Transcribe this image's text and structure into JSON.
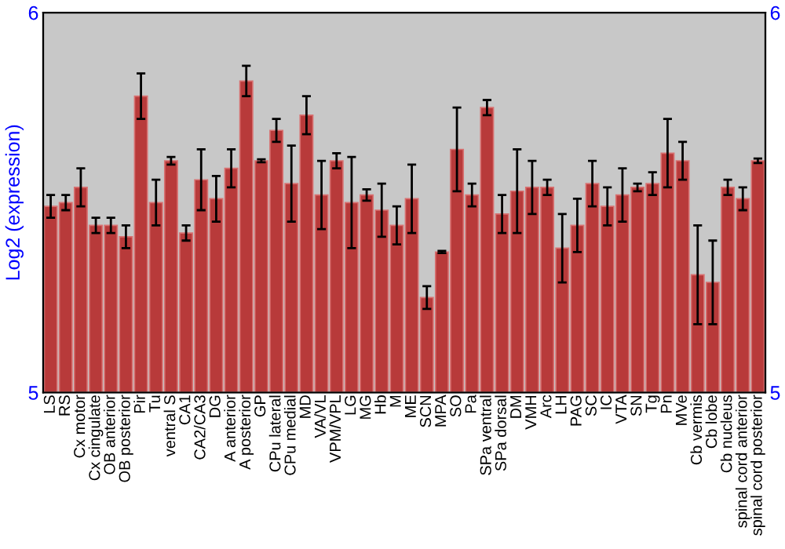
{
  "chart_data": {
    "type": "bar",
    "ylabel": "Log2 (expression)",
    "color": "#b83a3a",
    "categories": [
      "LS",
      "RS",
      "Cx motor",
      "Cx cingulate",
      "OB anterior",
      "OB posterior",
      "Pir",
      "Tu",
      "ventral S",
      "CA1",
      "CA2/CA3",
      "DG",
      "A anterior",
      "A posterior",
      "GP",
      "CPu lateral",
      "CPu medial",
      "MD",
      "VA/VL",
      "VPM/VPL",
      "LG",
      "MG",
      "Hb",
      "M",
      "ME",
      "SCN",
      "MPA",
      "SO",
      "Pa",
      "SPa ventral",
      "SPa dorsal",
      "DM",
      "VMH",
      "Arc",
      "LH",
      "PAG",
      "SC",
      "IC",
      "VTA",
      "SN",
      "Tg",
      "Pn",
      "MVe",
      "Cb vermis",
      "Cb lobe",
      "Cb nucleus",
      "spinal cord anterior",
      "spinal cord posterior"
    ],
    "values": [
      5.49,
      5.5,
      5.54,
      5.44,
      5.44,
      5.41,
      5.78,
      5.5,
      5.61,
      5.42,
      5.56,
      5.51,
      5.59,
      5.82,
      5.61,
      5.69,
      5.55,
      5.73,
      5.52,
      5.61,
      5.5,
      5.52,
      5.48,
      5.44,
      5.51,
      5.25,
      5.37,
      5.64,
      5.52,
      5.75,
      5.47,
      5.53,
      5.54,
      5.54,
      5.38,
      5.44,
      5.55,
      5.49,
      5.52,
      5.54,
      5.55,
      5.63,
      5.61,
      5.31,
      5.29,
      5.54,
      5.51,
      5.61
    ],
    "errors": [
      0.03,
      0.02,
      0.05,
      0.02,
      0.02,
      0.03,
      0.06,
      0.06,
      0.01,
      0.02,
      0.08,
      0.06,
      0.05,
      0.04,
      0.004,
      0.03,
      0.1,
      0.05,
      0.09,
      0.02,
      0.12,
      0.015,
      0.07,
      0.05,
      0.09,
      0.03,
      0.003,
      0.11,
      0.03,
      0.02,
      0.05,
      0.11,
      0.07,
      0.02,
      0.09,
      0.07,
      0.06,
      0.05,
      0.07,
      0.01,
      0.03,
      0.09,
      0.05,
      0.13,
      0.11,
      0.02,
      0.03,
      0.006
    ],
    "ylim": [
      5,
      6
    ],
    "yticks": [
      5,
      6
    ],
    "y2lim": [
      5,
      6
    ],
    "y2ticks": [
      5,
      6
    ],
    "grid": false
  }
}
